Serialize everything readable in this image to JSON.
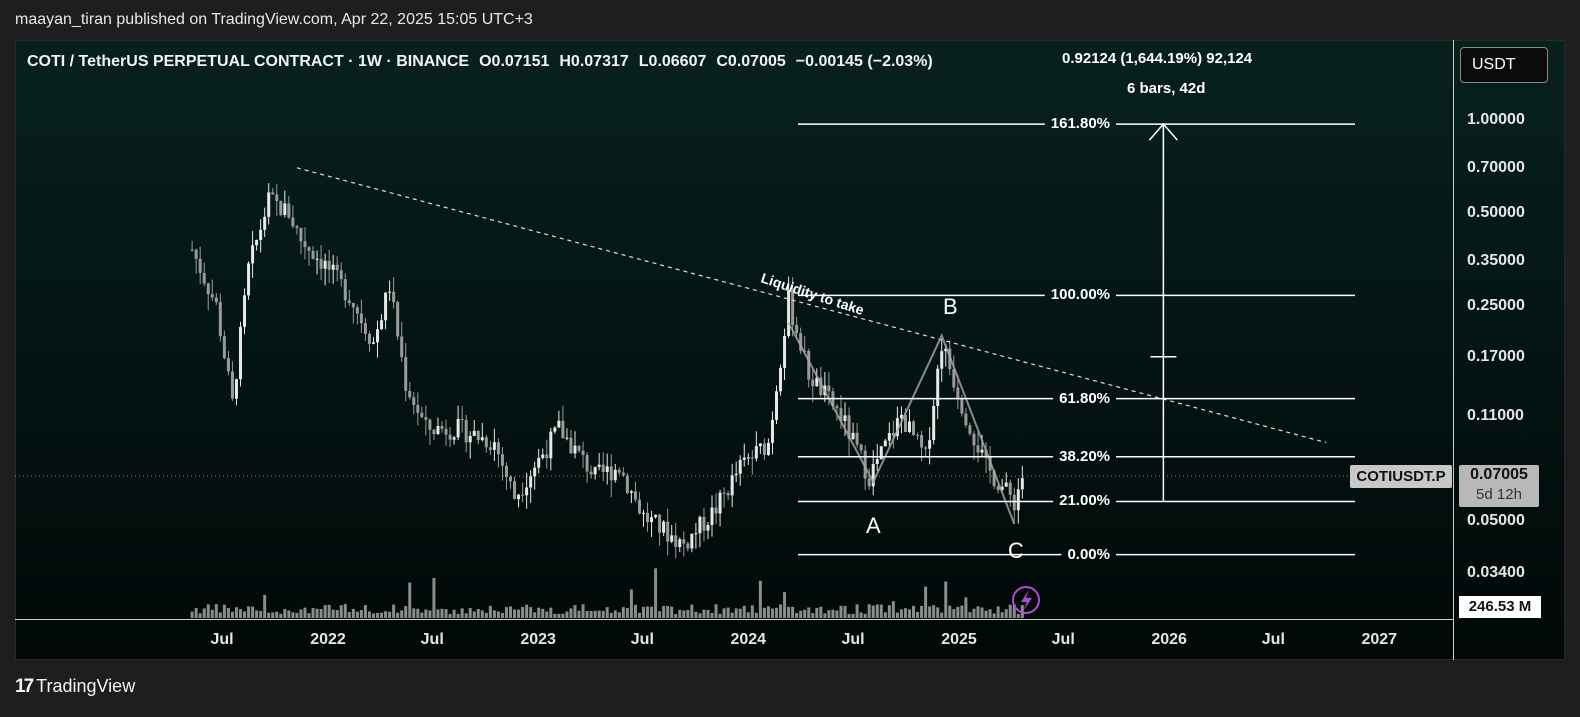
{
  "header": {
    "published": "maayan_tiran published on TradingView.com, Apr 22, 2025 15:05 UTC+3"
  },
  "legend": {
    "symbol": "COTI / TetherUS PERPETUAL CONTRACT · 1W · BINANCE",
    "open": "O0.07151",
    "high": "H0.07317",
    "low": "L0.06607",
    "close": "C0.07005",
    "change": "−0.00145 (−2.03%)"
  },
  "measure": {
    "line1": "0.92124 (1,644.19%) 92,124",
    "line2": "6 bars, 42d"
  },
  "currency": "USDT",
  "price_tag": {
    "value": "0.07005",
    "countdown": "5d 12h",
    "symbol": "COTIUSDT.P"
  },
  "volume_tag": "246.53 M",
  "annotation": "Liquidity to take",
  "waves": {
    "a": "A",
    "b": "B",
    "c": "C"
  },
  "footer": {
    "brand_mark": "17",
    "brand": "TradingView"
  },
  "colors": {
    "background_top": "#07211f",
    "background_bottom": "#020808",
    "candles": "#d8d8d8",
    "volume": "#8c8c8c",
    "lines": "#ffffff",
    "lightning": "#b24ad6"
  },
  "chart_data": {
    "type": "candlestick",
    "scale": "log",
    "y_ticks": [
      "1.00000",
      "0.70000",
      "0.50000",
      "0.35000",
      "0.25000",
      "0.17000",
      "0.11000",
      "0.05000",
      "0.03400"
    ],
    "y_tick_values": [
      1.0,
      0.7,
      0.5,
      0.35,
      0.25,
      0.17,
      0.11,
      0.05,
      0.034
    ],
    "x_ticks": [
      "Jul",
      "2022",
      "Jul",
      "2023",
      "Jul",
      "2024",
      "Jul",
      "2025",
      "Jul",
      "2026",
      "Jul",
      "2027"
    ],
    "x_tick_dates": [
      "2021-07",
      "2022-01",
      "2022-07",
      "2023-01",
      "2023-07",
      "2024-01",
      "2024-07",
      "2025-01",
      "2025-07",
      "2026-01",
      "2026-07",
      "2027-01"
    ],
    "price_path": [
      [
        "2021-05-10",
        0.38
      ],
      [
        "2021-06-21",
        0.25
      ],
      [
        "2021-07-19",
        0.12
      ],
      [
        "2021-08-16",
        0.33
      ],
      [
        "2021-09-20",
        0.55
      ],
      [
        "2021-10-25",
        0.5
      ],
      [
        "2021-11-15",
        0.41
      ],
      [
        "2021-12-27",
        0.34
      ],
      [
        "2022-02-07",
        0.27
      ],
      [
        "2022-03-21",
        0.19
      ],
      [
        "2022-04-18",
        0.29
      ],
      [
        "2022-05-16",
        0.14
      ],
      [
        "2022-06-20",
        0.1
      ],
      [
        "2022-08-15",
        0.1
      ],
      [
        "2022-10-17",
        0.09
      ],
      [
        "2022-11-21",
        0.06
      ],
      [
        "2023-02-06",
        0.1
      ],
      [
        "2023-04-10",
        0.07
      ],
      [
        "2023-05-22",
        0.075
      ],
      [
        "2023-07-03",
        0.052
      ],
      [
        "2023-09-11",
        0.042
      ],
      [
        "2023-11-06",
        0.055
      ],
      [
        "2023-12-18",
        0.075
      ],
      [
        "2024-02-05",
        0.09
      ],
      [
        "2024-03-11",
        0.26
      ],
      [
        "2024-04-15",
        0.15
      ],
      [
        "2024-06-10",
        0.11
      ],
      [
        "2024-07-29",
        0.07
      ],
      [
        "2024-09-23",
        0.11
      ],
      [
        "2024-11-04",
        0.08
      ],
      [
        "2024-12-02",
        0.19
      ],
      [
        "2025-01-06",
        0.12
      ],
      [
        "2025-02-17",
        0.075
      ],
      [
        "2025-04-07",
        0.058
      ],
      [
        "2025-04-21",
        0.07
      ]
    ],
    "fibonacci": [
      {
        "level": "161.80%",
        "price": 0.97
      },
      {
        "level": "100.00%",
        "price": 0.27
      },
      {
        "level": "61.80%",
        "price": 0.125
      },
      {
        "level": "38.20%",
        "price": 0.081
      },
      {
        "level": "21.00%",
        "price": 0.058
      },
      {
        "level": "0.00%",
        "price": 0.039
      }
    ],
    "trendline": [
      [
        "2021-11-08",
        0.7
      ],
      [
        "2026-10-01",
        0.09
      ]
    ],
    "abc_pattern": [
      [
        "2024-03-11",
        0.22
      ],
      [
        "2024-08-05",
        0.067
      ],
      [
        "2024-12-02",
        0.2
      ],
      [
        "2025-04-07",
        0.049
      ]
    ],
    "price_range_measure": {
      "from": 0.058,
      "to": 0.97,
      "date": "2025-12-22"
    }
  }
}
